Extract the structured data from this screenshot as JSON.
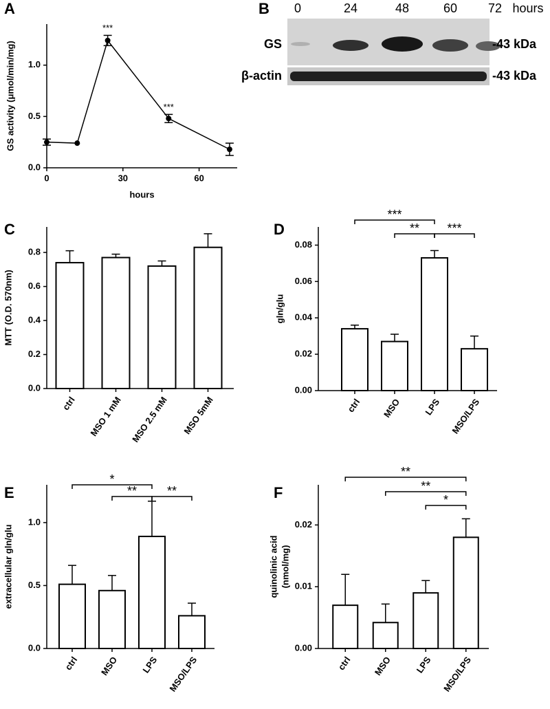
{
  "chart_data": [
    {
      "type": "line",
      "panel": "A",
      "x_label": "hours",
      "y_label": "GS activity (μmol/min/mg)",
      "x": [
        0,
        12,
        24,
        48,
        72
      ],
      "values": [
        0.25,
        0.24,
        1.24,
        0.48,
        0.18
      ],
      "errors": [
        0.03,
        0,
        0.05,
        0.04,
        0.06
      ],
      "color": "#000000",
      "xlim": [
        0,
        75
      ],
      "xticks": [
        0,
        30,
        60
      ],
      "ylim": [
        0,
        1.4
      ],
      "yticks": [
        {
          "value": 0,
          "label": "0.0"
        },
        0.5,
        {
          "value": 1,
          "label": "1.0"
        }
      ],
      "annotations": [
        {
          "x": 24,
          "text": "***"
        },
        {
          "x": 48,
          "text": "***"
        }
      ]
    },
    {
      "type": "bar",
      "panel": "C",
      "y_label": "MTT (O.D. 570nm)",
      "categories": [
        "ctrl",
        "MSO 1 mM",
        "MSO 2.5 mM",
        "MSO 5mM"
      ],
      "values": [
        0.74,
        0.77,
        0.72,
        0.83
      ],
      "errors": [
        0.07,
        0.02,
        0.03,
        0.08
      ],
      "color": "#000000",
      "fill": "#ffffff",
      "ylim": [
        0,
        0.95
      ],
      "yticks": [
        {
          "value": 0,
          "label": "0.0"
        },
        0.2,
        0.4,
        0.6,
        0.8
      ],
      "comparisons": []
    },
    {
      "type": "bar",
      "panel": "D",
      "y_label": "gln/glu",
      "categories": [
        "ctrl",
        "MSO",
        "LPS",
        "MSO/LPS"
      ],
      "values": [
        0.034,
        0.027,
        0.073,
        0.023
      ],
      "errors": [
        0.002,
        0.004,
        0.004,
        0.007
      ],
      "color": "#000000",
      "fill": "#ffffff",
      "ylim": [
        0,
        0.09
      ],
      "yticks": [
        {
          "value": 0,
          "label": "0.00"
        },
        0.02,
        0.04,
        0.06,
        0.08
      ],
      "comparisons": [
        {
          "between": [
            "ctrl",
            "LPS"
          ],
          "label": "***"
        },
        {
          "between": [
            "MSO",
            "LPS"
          ],
          "label": "**"
        },
        {
          "between": [
            "LPS",
            "MSO/LPS"
          ],
          "label": "***"
        }
      ]
    },
    {
      "type": "bar",
      "panel": "E",
      "y_label": "extracellular gln/glu",
      "categories": [
        "ctrl",
        "MSO",
        "LPS",
        "MSO/LPS"
      ],
      "values": [
        0.51,
        0.46,
        0.89,
        0.26
      ],
      "errors": [
        0.15,
        0.12,
        0.28,
        0.1
      ],
      "color": "#000000",
      "fill": "#ffffff",
      "ylim": [
        0,
        1.3
      ],
      "yticks": [
        {
          "value": 0,
          "label": "0.0"
        },
        0.5,
        {
          "value": 1,
          "label": "1.0"
        }
      ],
      "comparisons": [
        {
          "between": [
            "ctrl",
            "LPS"
          ],
          "label": "*"
        },
        {
          "between": [
            "MSO",
            "LPS"
          ],
          "label": "**"
        },
        {
          "between": [
            "LPS",
            "MSO/LPS"
          ],
          "label": "**"
        }
      ]
    },
    {
      "type": "bar",
      "panel": "F",
      "y_label": [
        "quinolinic acid",
        "(nmol/mg)"
      ],
      "categories": [
        "ctrl",
        "MSO",
        "LPS",
        "MSO/LPS"
      ],
      "values": [
        0.007,
        0.0042,
        0.009,
        0.018
      ],
      "errors": [
        0.005,
        0.003,
        0.002,
        0.003
      ],
      "color": "#000000",
      "fill": "#ffffff",
      "ylim": [
        0,
        0.0265
      ],
      "yticks": [
        {
          "value": 0,
          "label": "0.00"
        },
        0.01,
        0.02
      ],
      "comparisons": [
        {
          "between": [
            "ctrl",
            "MSO/LPS"
          ],
          "label": "**"
        },
        {
          "between": [
            "MSO",
            "MSO/LPS"
          ],
          "label": "**"
        },
        {
          "between": [
            "LPS",
            "MSO/LPS"
          ],
          "label": "*"
        }
      ]
    }
  ],
  "blot": {
    "panel": "B",
    "lanes": [
      "0",
      "24",
      "48",
      "60",
      "72"
    ],
    "unit": "hours",
    "rows": [
      {
        "label": "GS",
        "size": "-43 kDa"
      },
      {
        "label": "β-actin",
        "size": "-43 kDa"
      }
    ]
  }
}
